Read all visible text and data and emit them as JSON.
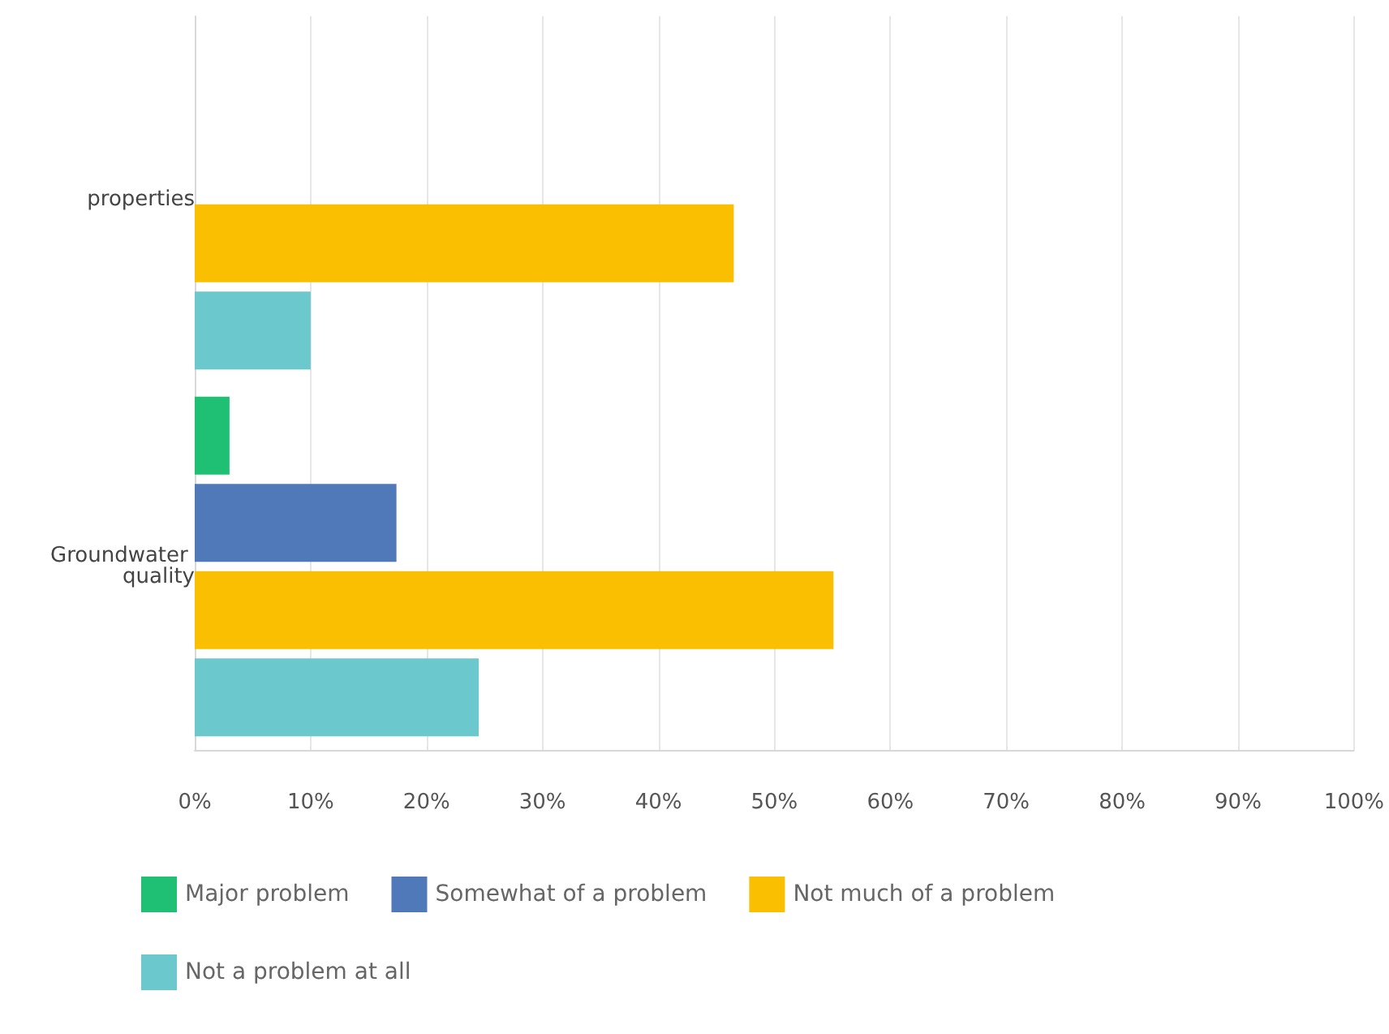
{
  "chart_data": {
    "type": "bar",
    "orientation": "horizontal",
    "categories": [
      "properties",
      "Groundwater quality"
    ],
    "series": [
      {
        "name": "Major problem",
        "color": "#1fbf74",
        "values": [
          null,
          3.0
        ]
      },
      {
        "name": "Somewhat of a problem",
        "color": "#4f79b8",
        "values": [
          null,
          17.4
        ]
      },
      {
        "name": "Not much of a problem",
        "color": "#f9bf00",
        "values": [
          46.5,
          55.1
        ]
      },
      {
        "name": "Not a problem at all",
        "color": "#6bc8cc",
        "values": [
          10.0,
          24.5
        ]
      }
    ],
    "xlim": [
      0,
      100
    ],
    "xticks": [
      {
        "value": 0,
        "label": "0%"
      },
      {
        "value": 10,
        "label": "10%"
      },
      {
        "value": 20,
        "label": "20%"
      },
      {
        "value": 30,
        "label": "30%"
      },
      {
        "value": 40,
        "label": "40%"
      },
      {
        "value": 50,
        "label": "50%"
      },
      {
        "value": 60,
        "label": "60%"
      },
      {
        "value": 70,
        "label": "70%"
      },
      {
        "value": 80,
        "label": "80%"
      },
      {
        "value": 90,
        "label": "90%"
      },
      {
        "value": 100,
        "label": "100%"
      }
    ],
    "grid": "x",
    "legend": "bottom"
  }
}
